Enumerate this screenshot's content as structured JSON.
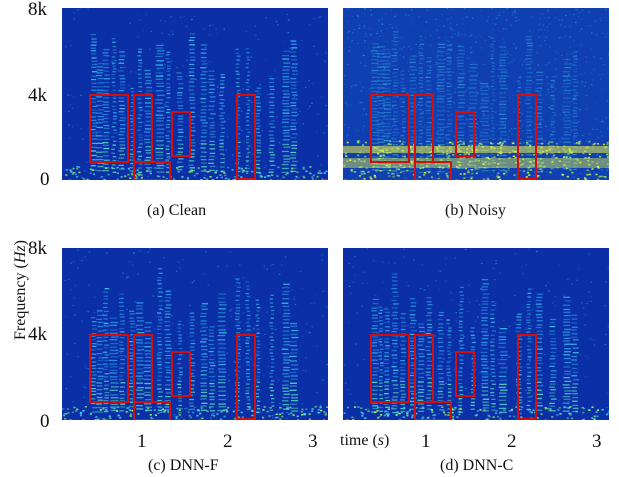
{
  "figure": {
    "ylabel": {
      "prefix": "Frequency (",
      "unit": "Hz",
      "suffix": ")"
    },
    "xlabel": {
      "prefix": "time (",
      "unit": "s",
      "suffix": ")"
    },
    "y_ticks": [
      "8k",
      "4k",
      "0"
    ],
    "x_ticks": [
      "1",
      "2",
      "3"
    ],
    "box_color": "#d10f0f"
  },
  "panels": [
    {
      "id": "a",
      "caption": "(a) Clean"
    },
    {
      "id": "b",
      "caption": "(b) Noisy"
    },
    {
      "id": "c",
      "caption": "(c) DNN-F"
    },
    {
      "id": "d",
      "caption": "(d) DNN-C"
    }
  ]
}
